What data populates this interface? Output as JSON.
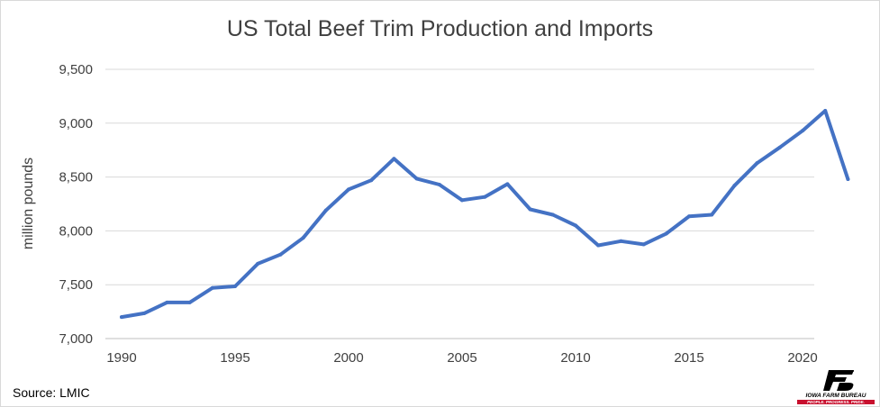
{
  "chart_data": {
    "type": "line",
    "title": "US Total Beef Trim Production and Imports",
    "ylabel": "million pounds",
    "xlabel": "",
    "ylim": [
      7000,
      9500
    ],
    "xlim": [
      1990,
      2022
    ],
    "y_ticks": [
      "7,000",
      "7,500",
      "8,000",
      "8,500",
      "9,000",
      "9,500"
    ],
    "y_tick_values": [
      7000,
      7500,
      8000,
      8500,
      9000,
      9500
    ],
    "x_ticks": [
      "1990",
      "1995",
      "2000",
      "2005",
      "2010",
      "2015",
      "2020"
    ],
    "x_tick_values": [
      1990,
      1995,
      2000,
      2005,
      2010,
      2015,
      2020
    ],
    "grid": "horizontal",
    "line_color": "#4472c4",
    "series": [
      {
        "x": [
          1990,
          1991,
          1992,
          1993,
          1994,
          1995,
          1996,
          1997,
          1998,
          1999,
          2000,
          2001,
          2002,
          2003,
          2004,
          2005,
          2006,
          2007,
          2008,
          2009,
          2010,
          2011,
          2012,
          2013,
          2014,
          2015,
          2016,
          2017,
          2018,
          2019,
          2020,
          2021,
          2022
        ],
        "values": [
          7200,
          7235,
          7335,
          7335,
          7470,
          7485,
          7695,
          7780,
          7935,
          8190,
          8385,
          8470,
          8670,
          8485,
          8430,
          8285,
          8315,
          8435,
          8200,
          8150,
          8050,
          7865,
          7905,
          7875,
          7975,
          8135,
          8150,
          8420,
          8630,
          8775,
          8930,
          9115,
          8480
        ]
      }
    ]
  },
  "footer": {
    "source": "Source: LMIC"
  },
  "logo": {
    "name": "IOWA FARM BUREAU",
    "tagline": "PEOPLE. PROGRESS. PRIDE.",
    "accent": "#c8102e"
  }
}
